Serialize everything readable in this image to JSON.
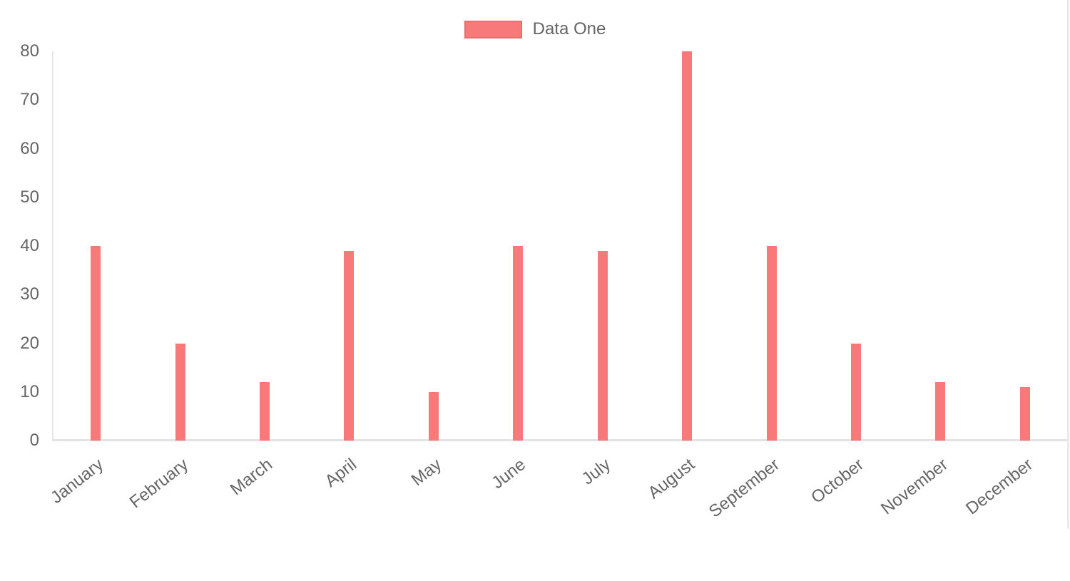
{
  "chart_data": {
    "type": "bar",
    "title": "",
    "xlabel": "",
    "ylabel": "",
    "categories": [
      "January",
      "February",
      "March",
      "April",
      "May",
      "June",
      "July",
      "August",
      "September",
      "October",
      "November",
      "December"
    ],
    "series": [
      {
        "name": "Data One",
        "color": "#f87979",
        "values": [
          40,
          20,
          12,
          39,
          10,
          40,
          39,
          80,
          40,
          20,
          12,
          11
        ]
      }
    ],
    "ylim": [
      0,
      80
    ],
    "yticks": [
      0,
      10,
      20,
      30,
      40,
      50,
      60,
      70,
      80
    ],
    "grid": false,
    "legend_position": "top",
    "x_label_rotation_deg": -38
  },
  "legend": {
    "label": "Data One"
  },
  "colors": {
    "bar_fill": "#f87979",
    "tick_text": "#666666",
    "axis_line": "#e7e7e7",
    "baseline": "#e3e3e3",
    "legend_swatch_border": "rgba(0,0,0,0.08)",
    "page_right_edge": "#ebebeb",
    "background": "#ffffff"
  }
}
